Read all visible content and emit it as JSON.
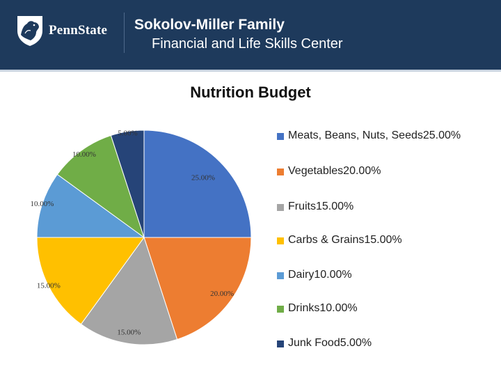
{
  "header": {
    "logo_text": "PennState",
    "title_line1": "Sokolov-Miller Family",
    "title_line2": "Financial and Life Skills Center",
    "background": "#1e3a5c"
  },
  "chart_data": {
    "type": "pie",
    "title": "Nutrition Budget",
    "categories": [
      "Meats, Beans, Nuts, Seeds",
      "Vegetables",
      "Fruits",
      "Carbs & Grains",
      "Dairy",
      "Drinks",
      "Junk Food"
    ],
    "values": [
      25,
      20,
      15,
      15,
      10,
      10,
      5
    ],
    "labels": [
      "25.00%",
      "20.00%",
      "15.00%",
      "15.00%",
      "10.00%",
      "10.00%",
      "5.00%"
    ],
    "colors": [
      "#4472c4",
      "#ed7d31",
      "#a5a5a5",
      "#ffc000",
      "#5b9bd5",
      "#70ad47",
      "#264478"
    ],
    "legend": [
      "Meats, Beans, Nuts, Seeds25.00%",
      "Vegetables20.00%",
      "Fruits15.00%",
      "Carbs & Grains15.00%",
      "Dairy10.00%",
      "Drinks10.00%",
      "Junk Food5.00%"
    ],
    "legend_position": "right"
  }
}
